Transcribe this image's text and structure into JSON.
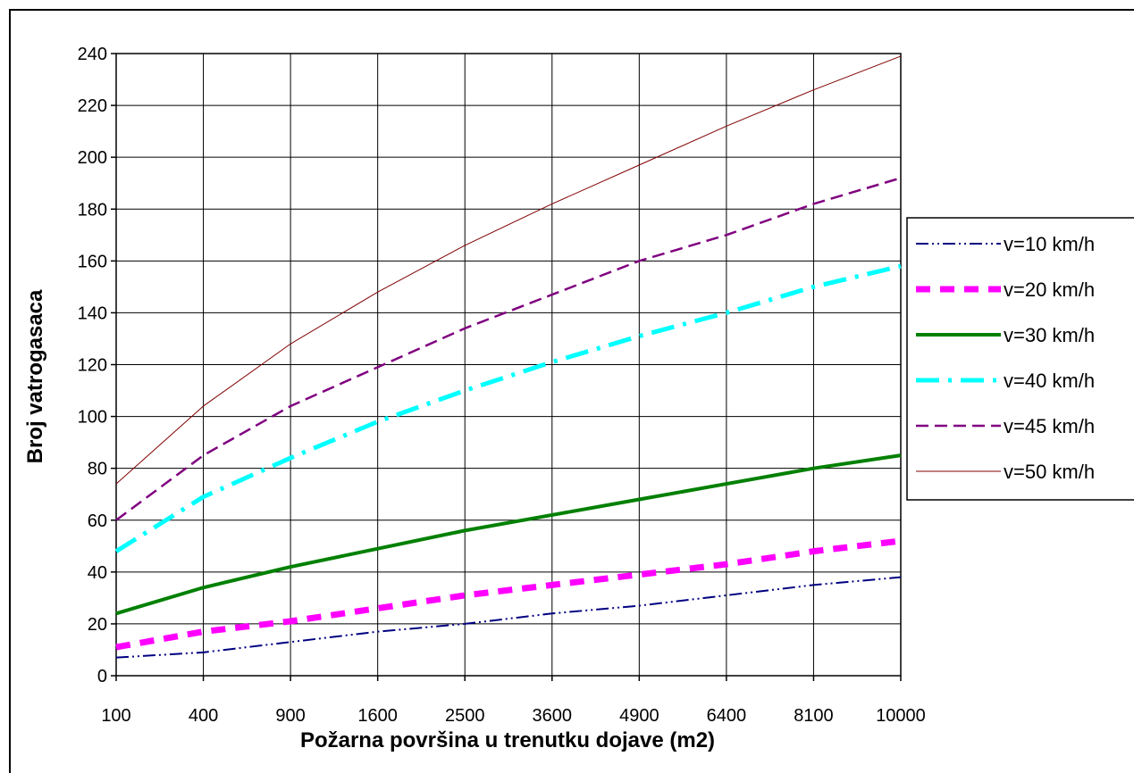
{
  "chart_data": {
    "type": "line",
    "title": "",
    "xlabel": "Požarna površina u trenutku dojave (m2)",
    "ylabel": "Broj vatrogasaca",
    "categories": [
      "100",
      "400",
      "900",
      "1600",
      "2500",
      "3600",
      "4900",
      "6400",
      "8100",
      "10000"
    ],
    "ylim": [
      0,
      240
    ],
    "yticks": [
      "0",
      "20",
      "40",
      "60",
      "80",
      "100",
      "120",
      "140",
      "160",
      "180",
      "200",
      "220",
      "240"
    ],
    "grid": true,
    "legend_position": "right",
    "series": [
      {
        "name": "v=10 km/h",
        "color": "#000080",
        "values": [
          7,
          9,
          13,
          17,
          20,
          24,
          27,
          31,
          35,
          38
        ]
      },
      {
        "name": "v=20 km/h",
        "color": "#FF00FF",
        "values": [
          11,
          17,
          21,
          26,
          31,
          35,
          39,
          43,
          48,
          52
        ]
      },
      {
        "name": "v=30 km/h",
        "color": "#008000",
        "values": [
          24,
          34,
          42,
          49,
          56,
          62,
          68,
          74,
          80,
          85
        ]
      },
      {
        "name": "v=40 km/h",
        "color": "#00FFFF",
        "values": [
          48,
          69,
          84,
          98,
          110,
          121,
          131,
          140,
          150,
          158
        ]
      },
      {
        "name": "v=45 km/h",
        "color": "#800080",
        "values": [
          60,
          85,
          104,
          119,
          134,
          147,
          160,
          170,
          182,
          192
        ]
      },
      {
        "name": "v=50 km/h",
        "color": "#800000",
        "values": [
          74,
          104,
          128,
          148,
          166,
          182,
          197,
          212,
          226,
          239
        ]
      }
    ]
  }
}
